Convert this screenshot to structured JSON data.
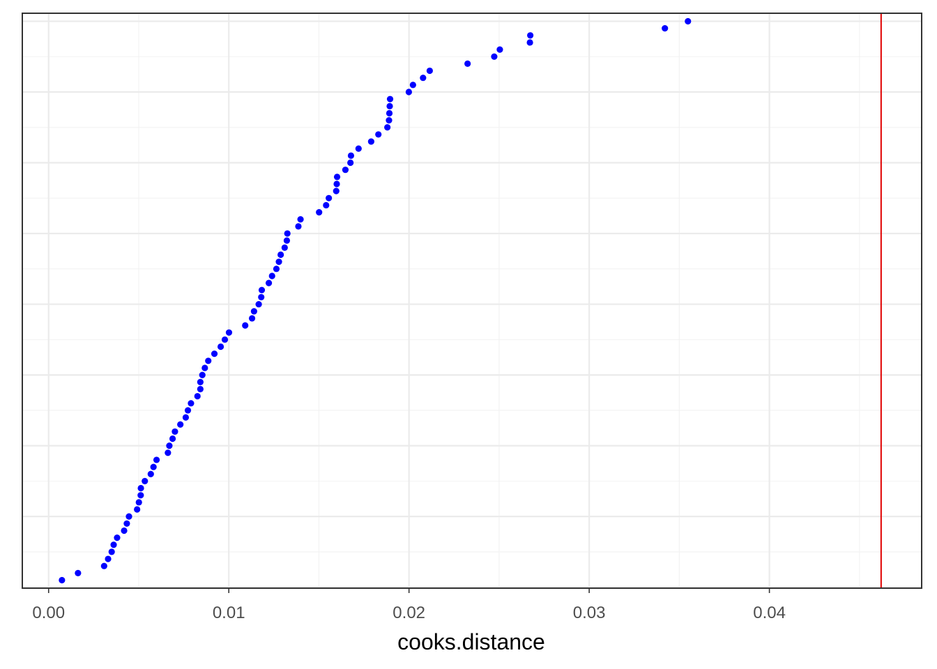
{
  "chart_data": {
    "type": "scatter",
    "title": "",
    "xlabel": "cooks.distance",
    "ylabel": "",
    "xlim": [
      -0.00146,
      0.04845
    ],
    "x_ticks": [
      0.0,
      0.01,
      0.02,
      0.03,
      0.04
    ],
    "x_tick_labels": [
      "0.00",
      "0.01",
      "0.02",
      "0.03",
      "0.04"
    ],
    "y_tick_labels_shown": false,
    "grid": true,
    "point_color": "#0000ff",
    "reference_line": {
      "orientation": "vertical",
      "x": 0.0462,
      "color": "#e00000"
    },
    "series": [
      {
        "x": [
          0.00074,
          0.00163,
          0.00308,
          0.0033,
          0.0035,
          0.00361,
          0.0038,
          0.00419,
          0.00434,
          0.00446,
          0.00491,
          0.00501,
          0.00511,
          0.00512,
          0.00534,
          0.00567,
          0.00582,
          0.00599,
          0.00662,
          0.0067,
          0.00688,
          0.00701,
          0.00731,
          0.00761,
          0.00773,
          0.0079,
          0.00826,
          0.00842,
          0.00842,
          0.00853,
          0.00867,
          0.00886,
          0.0092,
          0.00955,
          0.00978,
          0.01001,
          0.01091,
          0.01129,
          0.0114,
          0.01166,
          0.0118,
          0.01183,
          0.01222,
          0.0124,
          0.01264,
          0.01278,
          0.01288,
          0.0131,
          0.01322,
          0.01325,
          0.01386,
          0.01398,
          0.01501,
          0.0154,
          0.01555,
          0.01596,
          0.01599,
          0.01601,
          0.01647,
          0.01675,
          0.01678,
          0.0172,
          0.0179,
          0.0183,
          0.0188,
          0.01889,
          0.01891,
          0.01893,
          0.01895,
          0.01999,
          0.02022,
          0.02078,
          0.02115,
          0.02325,
          0.02473,
          0.02504,
          0.02671,
          0.02673,
          0.0342,
          0.03548
        ],
        "y": [
          1,
          2,
          3,
          4,
          5,
          6,
          7,
          8,
          9,
          10,
          11,
          12,
          13,
          14,
          15,
          16,
          17,
          18,
          19,
          20,
          21,
          22,
          23,
          24,
          25,
          26,
          27,
          28,
          29,
          30,
          31,
          32,
          33,
          34,
          35,
          36,
          37,
          38,
          39,
          40,
          41,
          42,
          43,
          44,
          45,
          46,
          47,
          48,
          49,
          50,
          51,
          52,
          53,
          54,
          55,
          56,
          57,
          58,
          59,
          60,
          61,
          62,
          63,
          64,
          65,
          66,
          67,
          68,
          69,
          70,
          71,
          72,
          73,
          74,
          75,
          76,
          77,
          78,
          79,
          80
        ]
      }
    ]
  }
}
